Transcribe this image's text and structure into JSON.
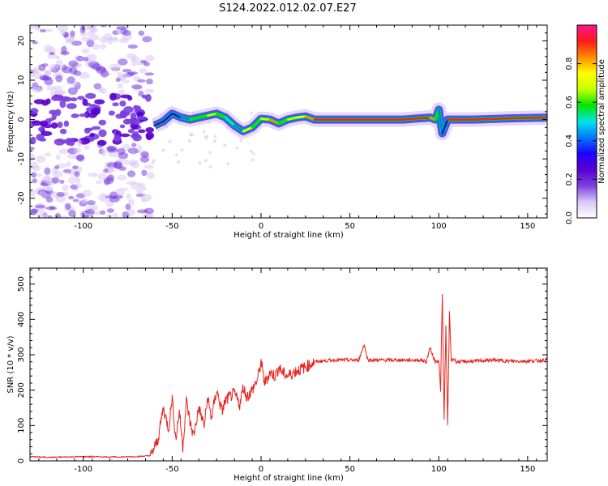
{
  "figure": {
    "title": "S124.2022.012.02.07.E27"
  },
  "chart_data": [
    {
      "type": "heatmap",
      "title": "",
      "xlabel": "Height of straight line (km)",
      "ylabel": "Frequency (Hz)",
      "xlim": [
        -130,
        161
      ],
      "ylim": [
        -25,
        24
      ],
      "xticks": [
        -100,
        -50,
        0,
        50,
        100,
        150
      ],
      "yticks": [
        -20,
        -10,
        0,
        10,
        20
      ],
      "grid": false,
      "colorbar": {
        "label": "Normalized spectral amplitude",
        "range": [
          0.0,
          1.0
        ],
        "ticks": [
          "0.0",
          "0.2",
          "0.4",
          "0.6",
          "0.8"
        ],
        "tick_values": [
          0.0,
          0.2,
          0.4,
          0.6,
          0.8
        ],
        "colors": [
          "#ffffff",
          "#d9c8f5",
          "#7b3fe0",
          "#5a00d0",
          "#1f00ff",
          "#0078ff",
          "#00e6e6",
          "#00e600",
          "#c8ff00",
          "#ffff00",
          "#ff8c00",
          "#ff1a1a",
          "#ff1493"
        ]
      },
      "ridge": {
        "description_values": "dominant frequency (Hz) vs height (km)",
        "x": [
          -60,
          -55,
          -50,
          -45,
          -40,
          -35,
          -30,
          -25,
          -20,
          -15,
          -10,
          -5,
          0,
          5,
          10,
          15,
          20,
          25,
          30,
          50,
          80,
          95,
          98,
          100,
          102,
          105,
          120,
          140,
          161
        ],
        "y": [
          -1.5,
          -0.5,
          1.5,
          0.5,
          0.0,
          0.5,
          1.0,
          1.5,
          0.5,
          -1.5,
          -3.0,
          -2.0,
          0.2,
          0.0,
          -1.0,
          0.0,
          0.5,
          0.8,
          0.0,
          0.0,
          0.0,
          0.5,
          0.0,
          2.5,
          -3.5,
          0.0,
          0.0,
          0.3,
          0.5
        ],
        "amplitude": [
          0.25,
          0.3,
          0.3,
          0.45,
          0.55,
          0.6,
          0.7,
          0.55,
          0.5,
          0.45,
          0.75,
          0.6,
          0.7,
          0.8,
          0.55,
          0.7,
          0.75,
          0.85,
          0.95,
          0.95,
          0.95,
          0.85,
          0.6,
          0.4,
          0.35,
          0.95,
          0.95,
          0.95,
          0.9
        ]
      },
      "noise_region": {
        "x_range": [
          -130,
          -62
        ],
        "y_range": [
          -25,
          24
        ],
        "amplitude_range": [
          0.05,
          0.2
        ]
      }
    },
    {
      "type": "line",
      "title": "",
      "xlabel": "Height of straight line (km)",
      "ylabel": "SNR (10 * v/v)",
      "xlim": [
        -130,
        161
      ],
      "ylim": [
        0,
        545
      ],
      "xticks": [
        -100,
        -50,
        0,
        50,
        100,
        150
      ],
      "yticks": [
        0,
        100,
        200,
        300,
        400,
        500
      ],
      "grid": false,
      "series": [
        {
          "color": "#e8221e",
          "x": [
            -130,
            -120,
            -100,
            -80,
            -70,
            -62,
            -58,
            -55,
            -52,
            -50,
            -48,
            -46,
            -44,
            -42,
            -40,
            -38,
            -35,
            -32,
            -30,
            -28,
            -25,
            -22,
            -20,
            -18,
            -15,
            -12,
            -10,
            -8,
            -5,
            -2,
            0,
            2,
            5,
            8,
            10,
            12,
            15,
            20,
            25,
            30,
            40,
            50,
            55,
            58,
            60,
            70,
            80,
            90,
            93,
            95,
            98,
            100,
            101,
            102,
            103,
            104,
            105,
            106,
            107,
            108,
            110,
            120,
            130,
            140,
            150,
            161
          ],
          "y": [
            12,
            10,
            12,
            11,
            12,
            15,
            60,
            150,
            90,
            180,
            60,
            140,
            40,
            170,
            110,
            70,
            150,
            100,
            180,
            120,
            200,
            140,
            170,
            180,
            190,
            160,
            210,
            180,
            200,
            230,
            280,
            220,
            250,
            240,
            265,
            250,
            240,
            255,
            265,
            280,
            285,
            285,
            285,
            330,
            285,
            285,
            285,
            285,
            280,
            320,
            280,
            285,
            200,
            470,
            120,
            380,
            100,
            420,
            280,
            290,
            280,
            282,
            285,
            282,
            282,
            285
          ]
        }
      ]
    }
  ]
}
